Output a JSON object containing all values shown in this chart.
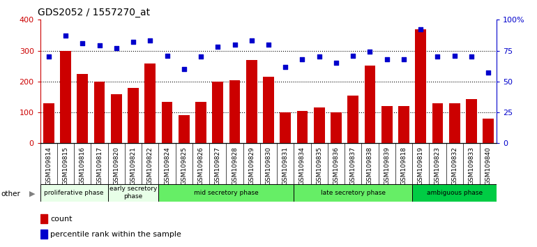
{
  "title": "GDS2052 / 1557270_at",
  "samples": [
    "GSM109814",
    "GSM109815",
    "GSM109816",
    "GSM109817",
    "GSM109820",
    "GSM109821",
    "GSM109822",
    "GSM109824",
    "GSM109825",
    "GSM109826",
    "GSM109827",
    "GSM109828",
    "GSM109829",
    "GSM109830",
    "GSM109831",
    "GSM109834",
    "GSM109835",
    "GSM109836",
    "GSM109837",
    "GSM109838",
    "GSM109839",
    "GSM109818",
    "GSM109819",
    "GSM109823",
    "GSM109832",
    "GSM109833",
    "GSM109840"
  ],
  "counts": [
    130,
    300,
    225,
    200,
    160,
    180,
    258,
    135,
    90,
    135,
    200,
    205,
    270,
    215,
    100,
    105,
    115,
    100,
    155,
    252,
    120,
    120,
    370,
    130,
    130,
    142,
    80
  ],
  "percentile": [
    70,
    87,
    81,
    79,
    77,
    82,
    83,
    71,
    60,
    70,
    78,
    80,
    83,
    80,
    62,
    68,
    70,
    65,
    71,
    74,
    68,
    68,
    92,
    70,
    71,
    70,
    57
  ],
  "phases": [
    {
      "name": "proliferative phase",
      "start": 0,
      "end": 4,
      "color": "#e8ffe8"
    },
    {
      "name": "early secretory\nphase",
      "start": 4,
      "end": 7,
      "color": "#e8ffe8"
    },
    {
      "name": "mid secretory phase",
      "start": 7,
      "end": 15,
      "color": "#66ee66"
    },
    {
      "name": "late secretory phase",
      "start": 15,
      "end": 22,
      "color": "#66ee66"
    },
    {
      "name": "ambiguous phase",
      "start": 22,
      "end": 27,
      "color": "#00cc44"
    }
  ],
  "ylim_left": [
    0,
    400
  ],
  "ylim_right": [
    0,
    100
  ],
  "yticks_left": [
    0,
    100,
    200,
    300,
    400
  ],
  "yticks_right": [
    0,
    25,
    50,
    75,
    100
  ],
  "ytick_labels_right": [
    "0",
    "25",
    "50",
    "75",
    "100%"
  ],
  "bar_color": "#cc0000",
  "scatter_color": "#0000cc",
  "plot_bg": "#ffffff",
  "tick_bg": "#d0d0d0"
}
